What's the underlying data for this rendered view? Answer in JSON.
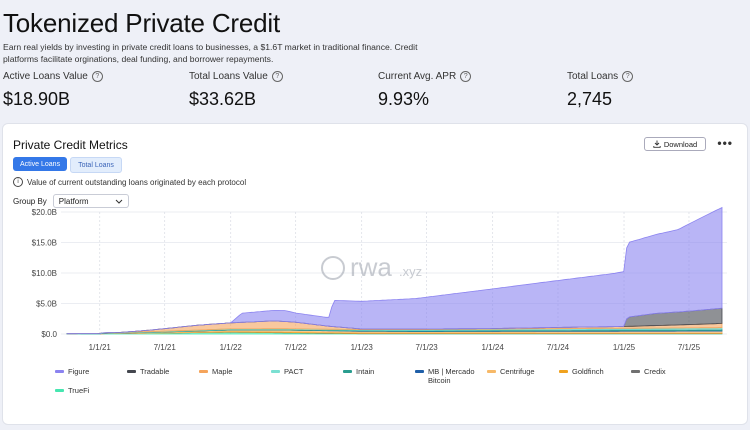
{
  "header": {
    "title": "Tokenized Private Credit",
    "description": "Earn real yields by investing in private credit loans to businesses, a $1.6T market in traditional finance. Credit platforms facilitate orginations, deal funding, and borrower repayments."
  },
  "stats": [
    {
      "label": "Active Loans Value",
      "value": "$18.90B"
    },
    {
      "label": "Total Loans Value",
      "value": "$33.62B"
    },
    {
      "label": "Current Avg. APR",
      "value": "9.93%"
    },
    {
      "label": "Total Loans",
      "value": "2,745"
    }
  ],
  "card": {
    "title": "Private Credit Metrics",
    "download_label": "Download",
    "more_label": "•••",
    "tabs": [
      {
        "label": "Active Loans",
        "active": true
      },
      {
        "label": "Total Loans",
        "active": false
      }
    ],
    "info_text": "Value of current outstanding loans originated by each protocol",
    "group_by_label": "Group By",
    "group_by_value": "Platform"
  },
  "watermark": {
    "main": "rwa",
    "suffix": ".xyz"
  },
  "chart_data": {
    "type": "area",
    "stacked": true,
    "y_unit": "billions USD",
    "ylim": [
      0,
      20
    ],
    "y_ticks": [
      "$0.0",
      "$5.0B",
      "$10.0B",
      "$15.0B",
      "$20.0B"
    ],
    "x_ticks": [
      "1/1/21",
      "7/1/21",
      "1/1/22",
      "7/1/22",
      "1/1/23",
      "7/1/23",
      "1/1/24",
      "7/1/24",
      "1/1/25",
      "7/1/25"
    ],
    "xlim": [
      "2020-09-15",
      "2025-10-15"
    ],
    "grid": true,
    "legend_position": "bottom",
    "series": [
      {
        "name": "Figure",
        "color": "#8b83f0",
        "points": [
          [
            "2022-01-01",
            0
          ],
          [
            "2022-02-01",
            1.5
          ],
          [
            "2022-06-01",
            1.8
          ],
          [
            "2022-07-01",
            1.5
          ],
          [
            "2022-10-01",
            1.4
          ],
          [
            "2022-10-15",
            4.3
          ],
          [
            "2023-06-01",
            5.0
          ],
          [
            "2024-01-01",
            6.5
          ],
          [
            "2024-06-01",
            7.5
          ],
          [
            "2024-12-01",
            8.7
          ],
          [
            "2025-01-01",
            9.0
          ],
          [
            "2025-01-10",
            12.2
          ],
          [
            "2025-06-01",
            13.5
          ],
          [
            "2025-07-01",
            14.3
          ],
          [
            "2025-09-01",
            15.8
          ],
          [
            "2025-10-01",
            16.5
          ]
        ]
      },
      {
        "name": "Tradable",
        "color": "#44474f",
        "points": [
          [
            "2025-01-01",
            0
          ],
          [
            "2025-01-10",
            1.5
          ],
          [
            "2025-04-01",
            2.0
          ],
          [
            "2025-07-01",
            2.2
          ],
          [
            "2025-10-01",
            2.5
          ]
        ]
      },
      {
        "name": "Maple",
        "color": "#f5a45b",
        "points": [
          [
            "2021-03-01",
            0
          ],
          [
            "2021-06-01",
            0.3
          ],
          [
            "2021-10-01",
            0.8
          ],
          [
            "2022-01-01",
            1.0
          ],
          [
            "2022-05-01",
            1.3
          ],
          [
            "2022-07-01",
            1.1
          ],
          [
            "2022-10-01",
            0.5
          ],
          [
            "2023-01-01",
            0.1
          ],
          [
            "2024-01-01",
            0.1
          ],
          [
            "2024-06-01",
            0.2
          ],
          [
            "2025-01-01",
            0.3
          ],
          [
            "2025-06-01",
            0.5
          ],
          [
            "2025-10-01",
            0.7
          ]
        ]
      },
      {
        "name": "PACT",
        "color": "#7be0d2",
        "points": [
          [
            "2020-10-01",
            0.05
          ],
          [
            "2023-01-01",
            0.1
          ],
          [
            "2025-10-01",
            0.2
          ]
        ]
      },
      {
        "name": "Intain",
        "color": "#2a9d8f",
        "points": [
          [
            "2020-10-01",
            0
          ],
          [
            "2022-01-01",
            0.1
          ],
          [
            "2023-06-01",
            0.15
          ],
          [
            "2025-10-01",
            0.25
          ]
        ]
      },
      {
        "name": "MB | Mercado Bitcoin",
        "color": "#1f5fa8",
        "points": [
          [
            "2022-06-01",
            0
          ],
          [
            "2023-01-01",
            0.05
          ],
          [
            "2025-10-01",
            0.1
          ]
        ]
      },
      {
        "name": "Centrifuge",
        "color": "#f7b968",
        "points": [
          [
            "2021-01-01",
            0.05
          ],
          [
            "2022-06-01",
            0.3
          ],
          [
            "2023-06-01",
            0.2
          ],
          [
            "2025-10-01",
            0.3
          ]
        ]
      },
      {
        "name": "Goldfinch",
        "color": "#f0a21f",
        "points": [
          [
            "2021-06-01",
            0
          ],
          [
            "2022-01-01",
            0.1
          ],
          [
            "2022-06-01",
            0.1
          ],
          [
            "2025-10-01",
            0.08
          ]
        ]
      },
      {
        "name": "Credix",
        "color": "#707070",
        "points": [
          [
            "2021-06-01",
            0
          ],
          [
            "2022-06-01",
            0.05
          ],
          [
            "2025-10-01",
            0.05
          ]
        ]
      },
      {
        "name": "TrueFi",
        "color": "#46e6b0",
        "points": [
          [
            "2021-01-01",
            0.05
          ],
          [
            "2022-01-01",
            0.3
          ],
          [
            "2022-06-01",
            0.2
          ],
          [
            "2023-01-01",
            0.05
          ],
          [
            "2025-10-01",
            0.05
          ]
        ]
      }
    ]
  }
}
